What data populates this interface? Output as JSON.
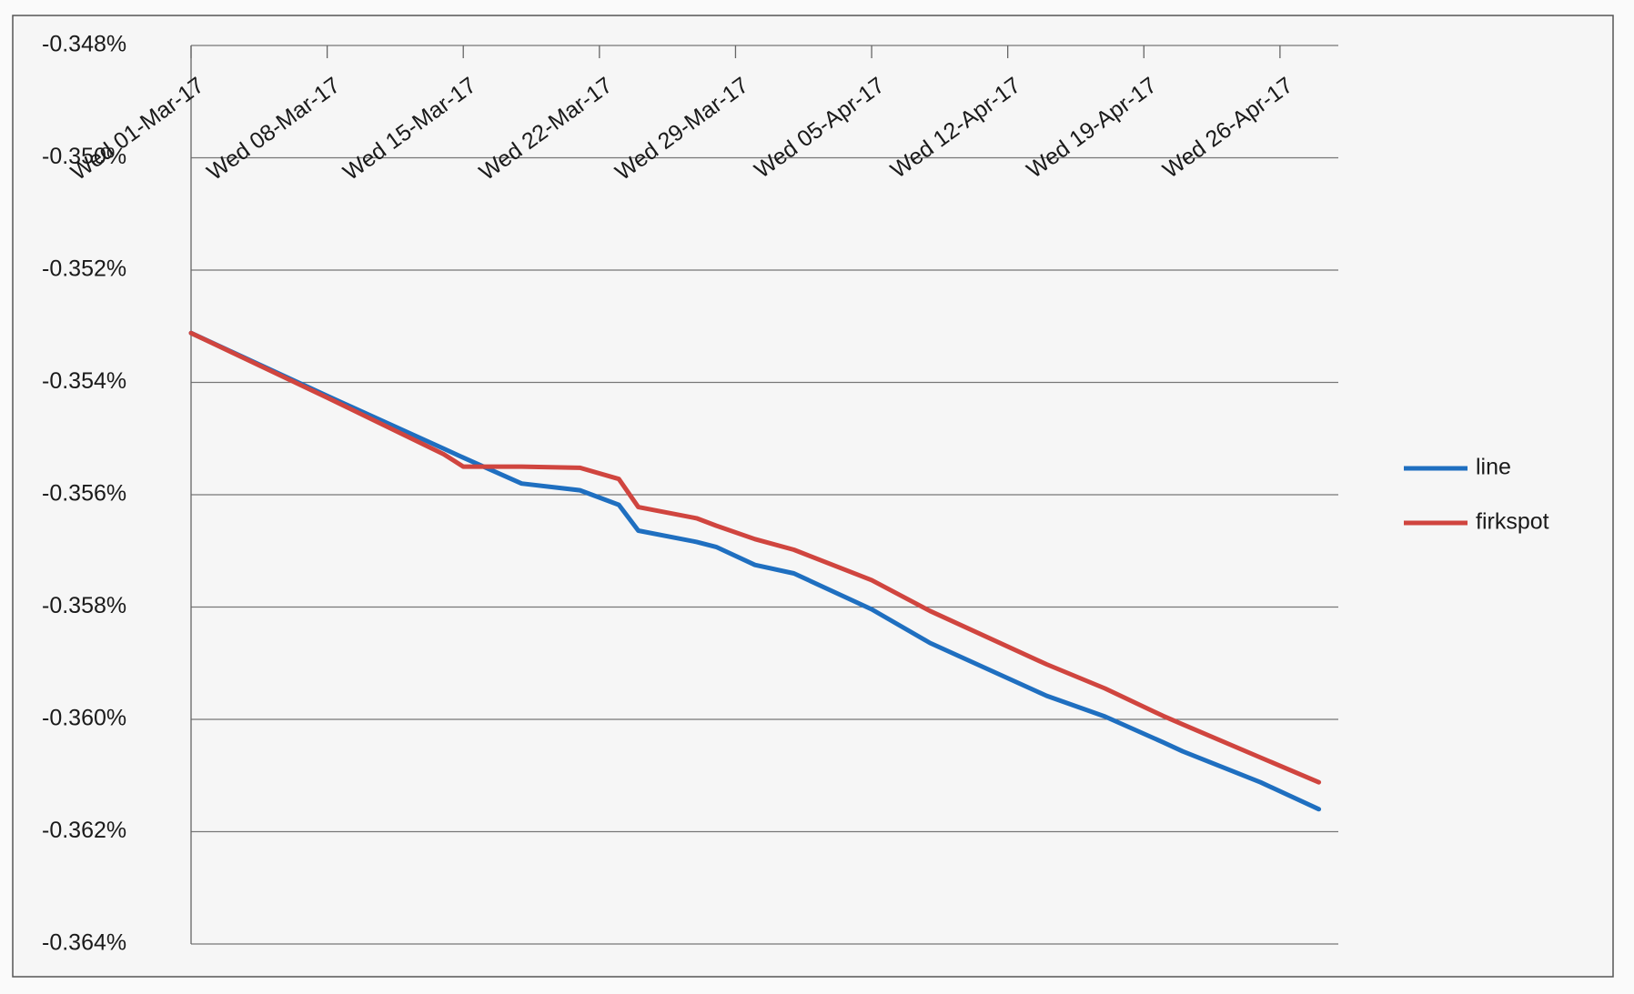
{
  "chart_data": {
    "type": "line",
    "x": [
      "2017-03-01",
      "2017-03-08",
      "2017-03-14",
      "2017-03-15",
      "2017-03-18",
      "2017-03-21",
      "2017-03-23",
      "2017-03-24",
      "2017-03-27",
      "2017-03-28",
      "2017-03-30",
      "2017-04-01",
      "2017-04-05",
      "2017-04-08",
      "2017-04-14",
      "2017-04-17",
      "2017-04-20",
      "2017-04-21",
      "2017-04-25",
      "2017-04-28"
    ],
    "series": [
      {
        "name": "line",
        "color": "#1f6fc0",
        "values": [
          -0.35312,
          -0.35424,
          -0.35518,
          -0.35534,
          -0.3558,
          -0.35592,
          -0.35618,
          -0.35664,
          -0.35684,
          -0.35693,
          -0.35725,
          -0.3574,
          -0.35804,
          -0.35864,
          -0.35958,
          -0.35995,
          -0.36041,
          -0.36057,
          -0.36112,
          -0.3616
        ]
      },
      {
        "name": "firkspot",
        "color": "#d0453f",
        "values": [
          -0.35312,
          -0.35427,
          -0.35528,
          -0.3555,
          -0.3555,
          -0.35552,
          -0.35572,
          -0.35622,
          -0.35642,
          -0.35655,
          -0.35679,
          -0.35698,
          -0.35752,
          -0.35807,
          -0.35902,
          -0.35945,
          -0.35994,
          -0.36009,
          -0.36068,
          -0.36112
        ]
      }
    ],
    "xlim": [
      "2017-03-01",
      "2017-04-29"
    ],
    "xticks": [
      {
        "value": "2017-03-01",
        "label": "Wed 01-Mar-17"
      },
      {
        "value": "2017-03-08",
        "label": "Wed 08-Mar-17"
      },
      {
        "value": "2017-03-15",
        "label": "Wed 15-Mar-17"
      },
      {
        "value": "2017-03-22",
        "label": "Wed 22-Mar-17"
      },
      {
        "value": "2017-03-29",
        "label": "Wed 29-Mar-17"
      },
      {
        "value": "2017-04-05",
        "label": "Wed 05-Apr-17"
      },
      {
        "value": "2017-04-12",
        "label": "Wed 12-Apr-17"
      },
      {
        "value": "2017-04-19",
        "label": "Wed 19-Apr-17"
      },
      {
        "value": "2017-04-26",
        "label": "Wed 26-Apr-17"
      }
    ],
    "ylim": [
      -0.364,
      -0.348
    ],
    "yticks": [
      {
        "value": -0.348,
        "label": "-0.348%"
      },
      {
        "value": -0.35,
        "label": "-0.350%"
      },
      {
        "value": -0.352,
        "label": "-0.352%"
      },
      {
        "value": -0.354,
        "label": "-0.354%"
      },
      {
        "value": -0.356,
        "label": "-0.356%"
      },
      {
        "value": -0.358,
        "label": "-0.358%"
      },
      {
        "value": -0.36,
        "label": "-0.360%"
      },
      {
        "value": -0.362,
        "label": "-0.362%"
      },
      {
        "value": -0.364,
        "label": "-0.364%"
      }
    ],
    "grid": true,
    "legend": "right"
  }
}
